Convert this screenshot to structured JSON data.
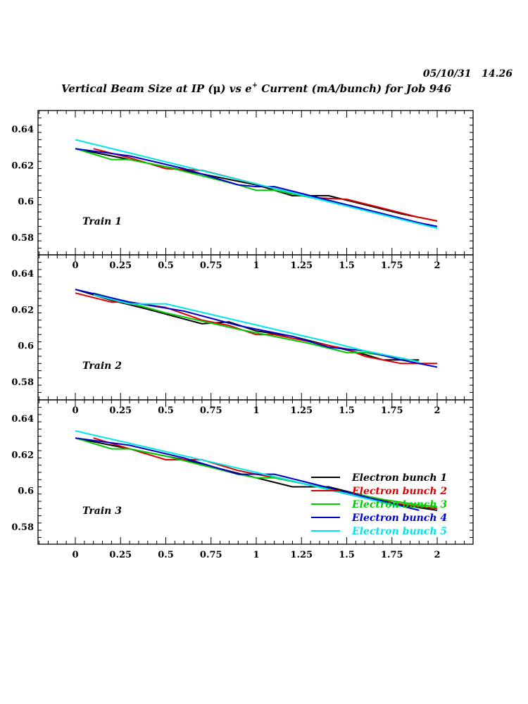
{
  "header": {
    "datestamp": "05/10/31   14.26",
    "title_prefix": "Vertical Beam Size at IP (",
    "title_mu": "μ",
    "title_mid": ") vs e",
    "title_sup": "+",
    "title_suffix": " Current (mA/bunch) for Job 946"
  },
  "chart_data": {
    "type": "line",
    "xlim": [
      -0.2,
      2.2
    ],
    "ylim": [
      0.57,
      0.65
    ],
    "x_ticks": [
      "0",
      "0.25",
      "0.5",
      "0.75",
      "1",
      "1.25",
      "1.5",
      "1.75",
      "2"
    ],
    "y_ticks": [
      "0.58",
      "0.6",
      "0.62",
      "0.64"
    ],
    "legend_position": "bottom-right of panel 3",
    "colors": {
      "Electron bunch 1": "#000000",
      "Electron bunch 2": "#dd0000",
      "Electron bunch 3": "#00cc00",
      "Electron bunch 4": "#0000cc",
      "Electron bunch 5": "#00e6e6"
    },
    "legend": [
      "Electron bunch 1",
      "Electron bunch 2",
      "Electron bunch 3",
      "Electron bunch 4",
      "Electron bunch 5"
    ],
    "panels": [
      {
        "label": "Train 1",
        "series": [
          {
            "name": "Electron bunch 1",
            "x": [
              0,
              0.2,
              0.4,
              0.6,
              0.8,
              1.0,
              1.2,
              1.4,
              1.6,
              1.8,
              2.0
            ],
            "y": [
              0.629,
              0.625,
              0.621,
              0.617,
              0.613,
              0.609,
              0.603,
              0.603,
              0.598,
              0.593,
              0.589
            ]
          },
          {
            "name": "Electron bunch 2",
            "x": [
              0.1,
              0.3,
              0.5,
              0.7,
              0.9,
              1.1,
              1.3,
              1.5,
              1.7,
              1.9,
              2.0
            ],
            "y": [
              0.629,
              0.624,
              0.618,
              0.617,
              0.612,
              0.607,
              0.602,
              0.601,
              0.596,
              0.591,
              0.589
            ]
          },
          {
            "name": "Electron bunch 3",
            "x": [
              0,
              0.2,
              0.3,
              0.5,
              0.7,
              0.9,
              1.0,
              1.1,
              1.3,
              1.5,
              1.7,
              1.9,
              2.0
            ],
            "y": [
              0.629,
              0.623,
              0.623,
              0.619,
              0.614,
              0.609,
              0.606,
              0.606,
              0.602,
              0.598,
              0.593,
              0.588,
              0.585
            ]
          },
          {
            "name": "Electron bunch 4",
            "x": [
              0,
              0.3,
              0.6,
              0.9,
              1.0,
              1.1,
              1.3,
              1.5,
              1.7,
              1.9,
              2.0
            ],
            "y": [
              0.629,
              0.625,
              0.618,
              0.609,
              0.608,
              0.608,
              0.603,
              0.598,
              0.593,
              0.588,
              0.586
            ]
          },
          {
            "name": "Electron bunch 5",
            "x": [
              0,
              2.0
            ],
            "y": [
              0.634,
              0.585
            ]
          }
        ]
      },
      {
        "label": "Train 2",
        "series": [
          {
            "name": "Electron bunch 1",
            "x": [
              0,
              0.2,
              0.4,
              0.55,
              0.7,
              0.85,
              1.0,
              1.2,
              1.4,
              1.6,
              1.7,
              1.9
            ],
            "y": [
              0.631,
              0.625,
              0.62,
              0.616,
              0.612,
              0.613,
              0.608,
              0.605,
              0.6,
              0.595,
              0.592,
              0.592
            ]
          },
          {
            "name": "Electron bunch 2",
            "x": [
              0,
              0.2,
              0.3,
              0.5,
              0.7,
              0.85,
              1.0,
              1.1,
              1.3,
              1.5,
              1.6,
              1.8,
              1.9,
              2.0
            ],
            "y": [
              0.629,
              0.624,
              0.624,
              0.621,
              0.614,
              0.611,
              0.606,
              0.606,
              0.602,
              0.598,
              0.594,
              0.59,
              0.59,
              0.59
            ]
          },
          {
            "name": "Electron bunch 3",
            "x": [
              0.1,
              0.5,
              0.9,
              1.3,
              1.5,
              1.6,
              1.8,
              1.9
            ],
            "y": [
              0.629,
              0.618,
              0.609,
              0.601,
              0.596,
              0.596,
              0.593,
              0.591
            ]
          },
          {
            "name": "Electron bunch 4",
            "x": [
              0,
              0.3,
              0.6,
              0.9,
              1.2,
              1.4,
              1.6,
              1.8,
              2.0
            ],
            "y": [
              0.631,
              0.624,
              0.619,
              0.611,
              0.605,
              0.599,
              0.597,
              0.592,
              0.588
            ]
          },
          {
            "name": "Electron bunch 5",
            "x": [
              0.1,
              0.3,
              0.5,
              0.8,
              1.1,
              1.4,
              1.6,
              1.8,
              1.9
            ],
            "y": [
              0.628,
              0.623,
              0.623,
              0.616,
              0.609,
              0.602,
              0.597,
              0.593,
              0.591
            ]
          }
        ]
      },
      {
        "label": "Train 3",
        "series": [
          {
            "name": "Electron bunch 1",
            "x": [
              0,
              0.2,
              0.4,
              0.6,
              0.8,
              1.0,
              1.2,
              1.4,
              1.6,
              1.8,
              2.0
            ],
            "y": [
              0.629,
              0.625,
              0.621,
              0.617,
              0.612,
              0.607,
              0.602,
              0.602,
              0.597,
              0.592,
              0.589
            ]
          },
          {
            "name": "Electron bunch 2",
            "x": [
              0.1,
              0.3,
              0.5,
              0.7,
              0.9,
              1.1,
              1.3,
              1.5,
              1.7,
              1.9,
              2.0
            ],
            "y": [
              0.629,
              0.623,
              0.617,
              0.617,
              0.611,
              0.607,
              0.603,
              0.598,
              0.594,
              0.591,
              0.59
            ]
          },
          {
            "name": "Electron bunch 3",
            "x": [
              0,
              0.2,
              0.3,
              0.5,
              0.7,
              0.9,
              1.0,
              1.1,
              1.3,
              1.5,
              1.7,
              1.9,
              2.0
            ],
            "y": [
              0.629,
              0.623,
              0.623,
              0.619,
              0.614,
              0.609,
              0.607,
              0.607,
              0.603,
              0.599,
              0.595,
              0.592,
              0.591
            ]
          },
          {
            "name": "Electron bunch 4",
            "x": [
              0,
              0.3,
              0.6,
              0.9,
              1.0,
              1.1,
              1.3,
              1.5,
              1.7,
              1.9
            ],
            "y": [
              0.629,
              0.625,
              0.618,
              0.609,
              0.609,
              0.609,
              0.604,
              0.599,
              0.594,
              0.589
            ]
          },
          {
            "name": "Electron bunch 5",
            "x": [
              0,
              1.0,
              1.8
            ],
            "y": [
              0.633,
              0.61,
              0.591
            ]
          }
        ]
      }
    ]
  }
}
